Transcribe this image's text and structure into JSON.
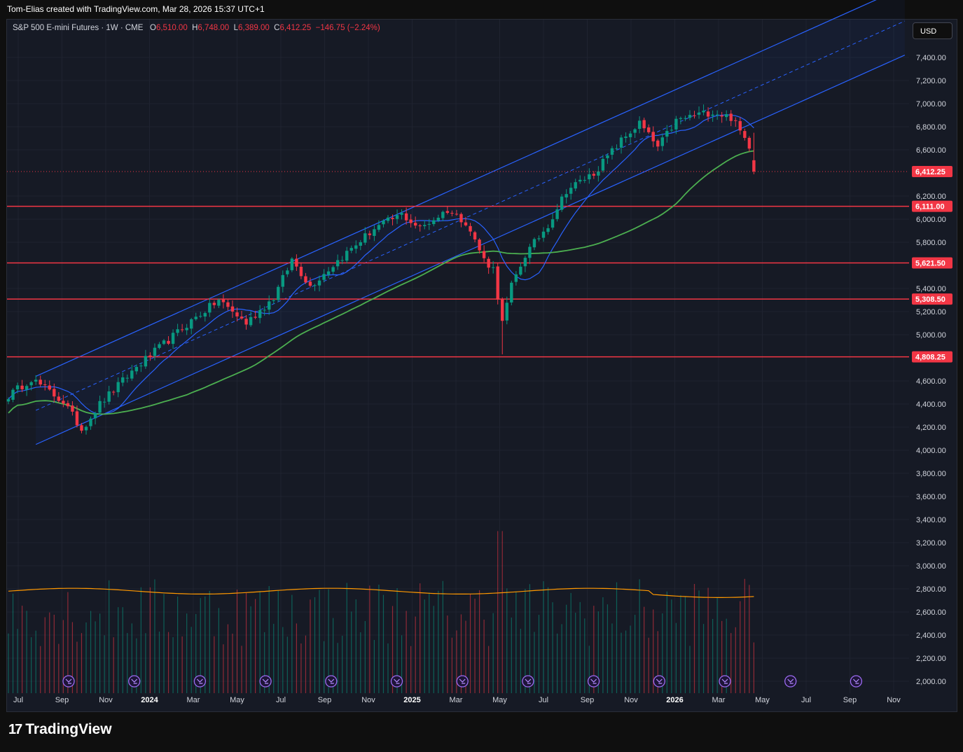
{
  "header": {
    "attribution": "Tom-Elias created with TradingView.com, Mar 28, 2026 15:37 UTC+1"
  },
  "legend": {
    "symbol": "S&P 500 E-mini Futures · 1W · CME",
    "o_label": "O",
    "o_value": "6,510.00",
    "h_label": "H",
    "h_value": "6,748.00",
    "l_label": "L",
    "l_value": "6,389.00",
    "c_label": "C",
    "c_value": "6,412.25",
    "change": "−146.75 (−2.24%)"
  },
  "currency_button": "USD",
  "footer": {
    "logo_text": "TradingView"
  },
  "colors": {
    "bull": "#089981",
    "bear": "#f23645",
    "channel": "#2962ff",
    "ma_fast": "#2962ff",
    "ma_slow": "#4caf50",
    "volume_ma": "#ff9800",
    "level": "#f23645",
    "background": "#161a25"
  },
  "icons": [
    "trend-arrow-icon"
  ],
  "chart_data": {
    "type": "candlestick",
    "interval": "1W",
    "y_ticks": [
      "7,400.00",
      "7,200.00",
      "7,000.00",
      "6,800.00",
      "6,600.00",
      "6,200.00",
      "6,000.00",
      "5,800.00",
      "5,400.00",
      "5,200.00",
      "5,000.00",
      "4,600.00",
      "4,400.00",
      "4,200.00",
      "4,000.00",
      "3,800.00",
      "3,600.00",
      "3,400.00",
      "3,200.00",
      "3,000.00",
      "2,800.00",
      "2,600.00",
      "2,400.00",
      "2,200.00",
      "2,000.00"
    ],
    "x_ticks": [
      {
        "label": "Jul",
        "bold": false
      },
      {
        "label": "Sep",
        "bold": false
      },
      {
        "label": "Nov",
        "bold": false
      },
      {
        "label": "2024",
        "bold": true
      },
      {
        "label": "Mar",
        "bold": false
      },
      {
        "label": "May",
        "bold": false
      },
      {
        "label": "Jul",
        "bold": false
      },
      {
        "label": "Sep",
        "bold": false
      },
      {
        "label": "Nov",
        "bold": false
      },
      {
        "label": "2025",
        "bold": true
      },
      {
        "label": "Mar",
        "bold": false
      },
      {
        "label": "May",
        "bold": false
      },
      {
        "label": "Jul",
        "bold": false
      },
      {
        "label": "Sep",
        "bold": false
      },
      {
        "label": "Nov",
        "bold": false
      },
      {
        "label": "2026",
        "bold": true
      },
      {
        "label": "Mar",
        "bold": false
      },
      {
        "label": "May",
        "bold": false
      },
      {
        "label": "Jul",
        "bold": false
      },
      {
        "label": "Sep",
        "bold": false
      },
      {
        "label": "Nov",
        "bold": false
      }
    ],
    "price_levels": [
      {
        "label": "6,111.00",
        "value": 6111
      },
      {
        "label": "5,621.50",
        "value": 5621.5
      },
      {
        "label": "5,308.50",
        "value": 5308.5
      },
      {
        "label": "4,808.25",
        "value": 4808.25
      }
    ],
    "last_price": {
      "label": "6,412.25",
      "value": 6412.25
    },
    "anchors": [
      {
        "week": 0,
        "price": 4470
      },
      {
        "week": 5,
        "price": 4620
      },
      {
        "week": 12,
        "price": 4420
      },
      {
        "week": 16,
        "price": 4180
      },
      {
        "week": 20,
        "price": 4400
      },
      {
        "week": 28,
        "price": 4720
      },
      {
        "week": 40,
        "price": 5120
      },
      {
        "week": 46,
        "price": 5300
      },
      {
        "week": 52,
        "price": 5100
      },
      {
        "week": 58,
        "price": 5320
      },
      {
        "week": 62,
        "price": 5650
      },
      {
        "week": 66,
        "price": 5420
      },
      {
        "week": 72,
        "price": 5640
      },
      {
        "week": 80,
        "price": 5920
      },
      {
        "week": 86,
        "price": 6040
      },
      {
        "week": 90,
        "price": 5920
      },
      {
        "week": 96,
        "price": 6080
      },
      {
        "week": 100,
        "price": 5980
      },
      {
        "week": 104,
        "price": 5650
      },
      {
        "week": 106,
        "price": 5570
      },
      {
        "week": 108,
        "price": 5100
      },
      {
        "week": 110,
        "price": 5420
      },
      {
        "week": 113,
        "price": 5690
      },
      {
        "week": 118,
        "price": 5950
      },
      {
        "week": 122,
        "price": 6250
      },
      {
        "week": 128,
        "price": 6400
      },
      {
        "week": 134,
        "price": 6680
      },
      {
        "week": 138,
        "price": 6830
      },
      {
        "week": 142,
        "price": 6620
      },
      {
        "week": 146,
        "price": 6850
      },
      {
        "week": 150,
        "price": 6900
      },
      {
        "week": 154,
        "price": 6930
      },
      {
        "week": 158,
        "price": 6880
      },
      {
        "week": 160,
        "price": 6760
      },
      {
        "week": 162,
        "price": 6640
      },
      {
        "week": 163,
        "price": 6510
      }
    ],
    "last_candle": {
      "open": 6510.0,
      "high": 6748.0,
      "low": 6389.0,
      "close": 6412.25,
      "change": -146.75,
      "change_pct": -2.24
    },
    "channel": {
      "start_week": 6,
      "end_week": 196,
      "lower_start": 4050,
      "upper_start": 4640,
      "lower_end": 7420,
      "upper_end": 8010
    },
    "moving_averages": [
      {
        "type": "fast",
        "start": 4170,
        "last": 6720
      },
      {
        "type": "slow",
        "start": 4020,
        "last": 6510
      }
    ],
    "volume_ma_level": 2780,
    "future_weeks": 28
  }
}
